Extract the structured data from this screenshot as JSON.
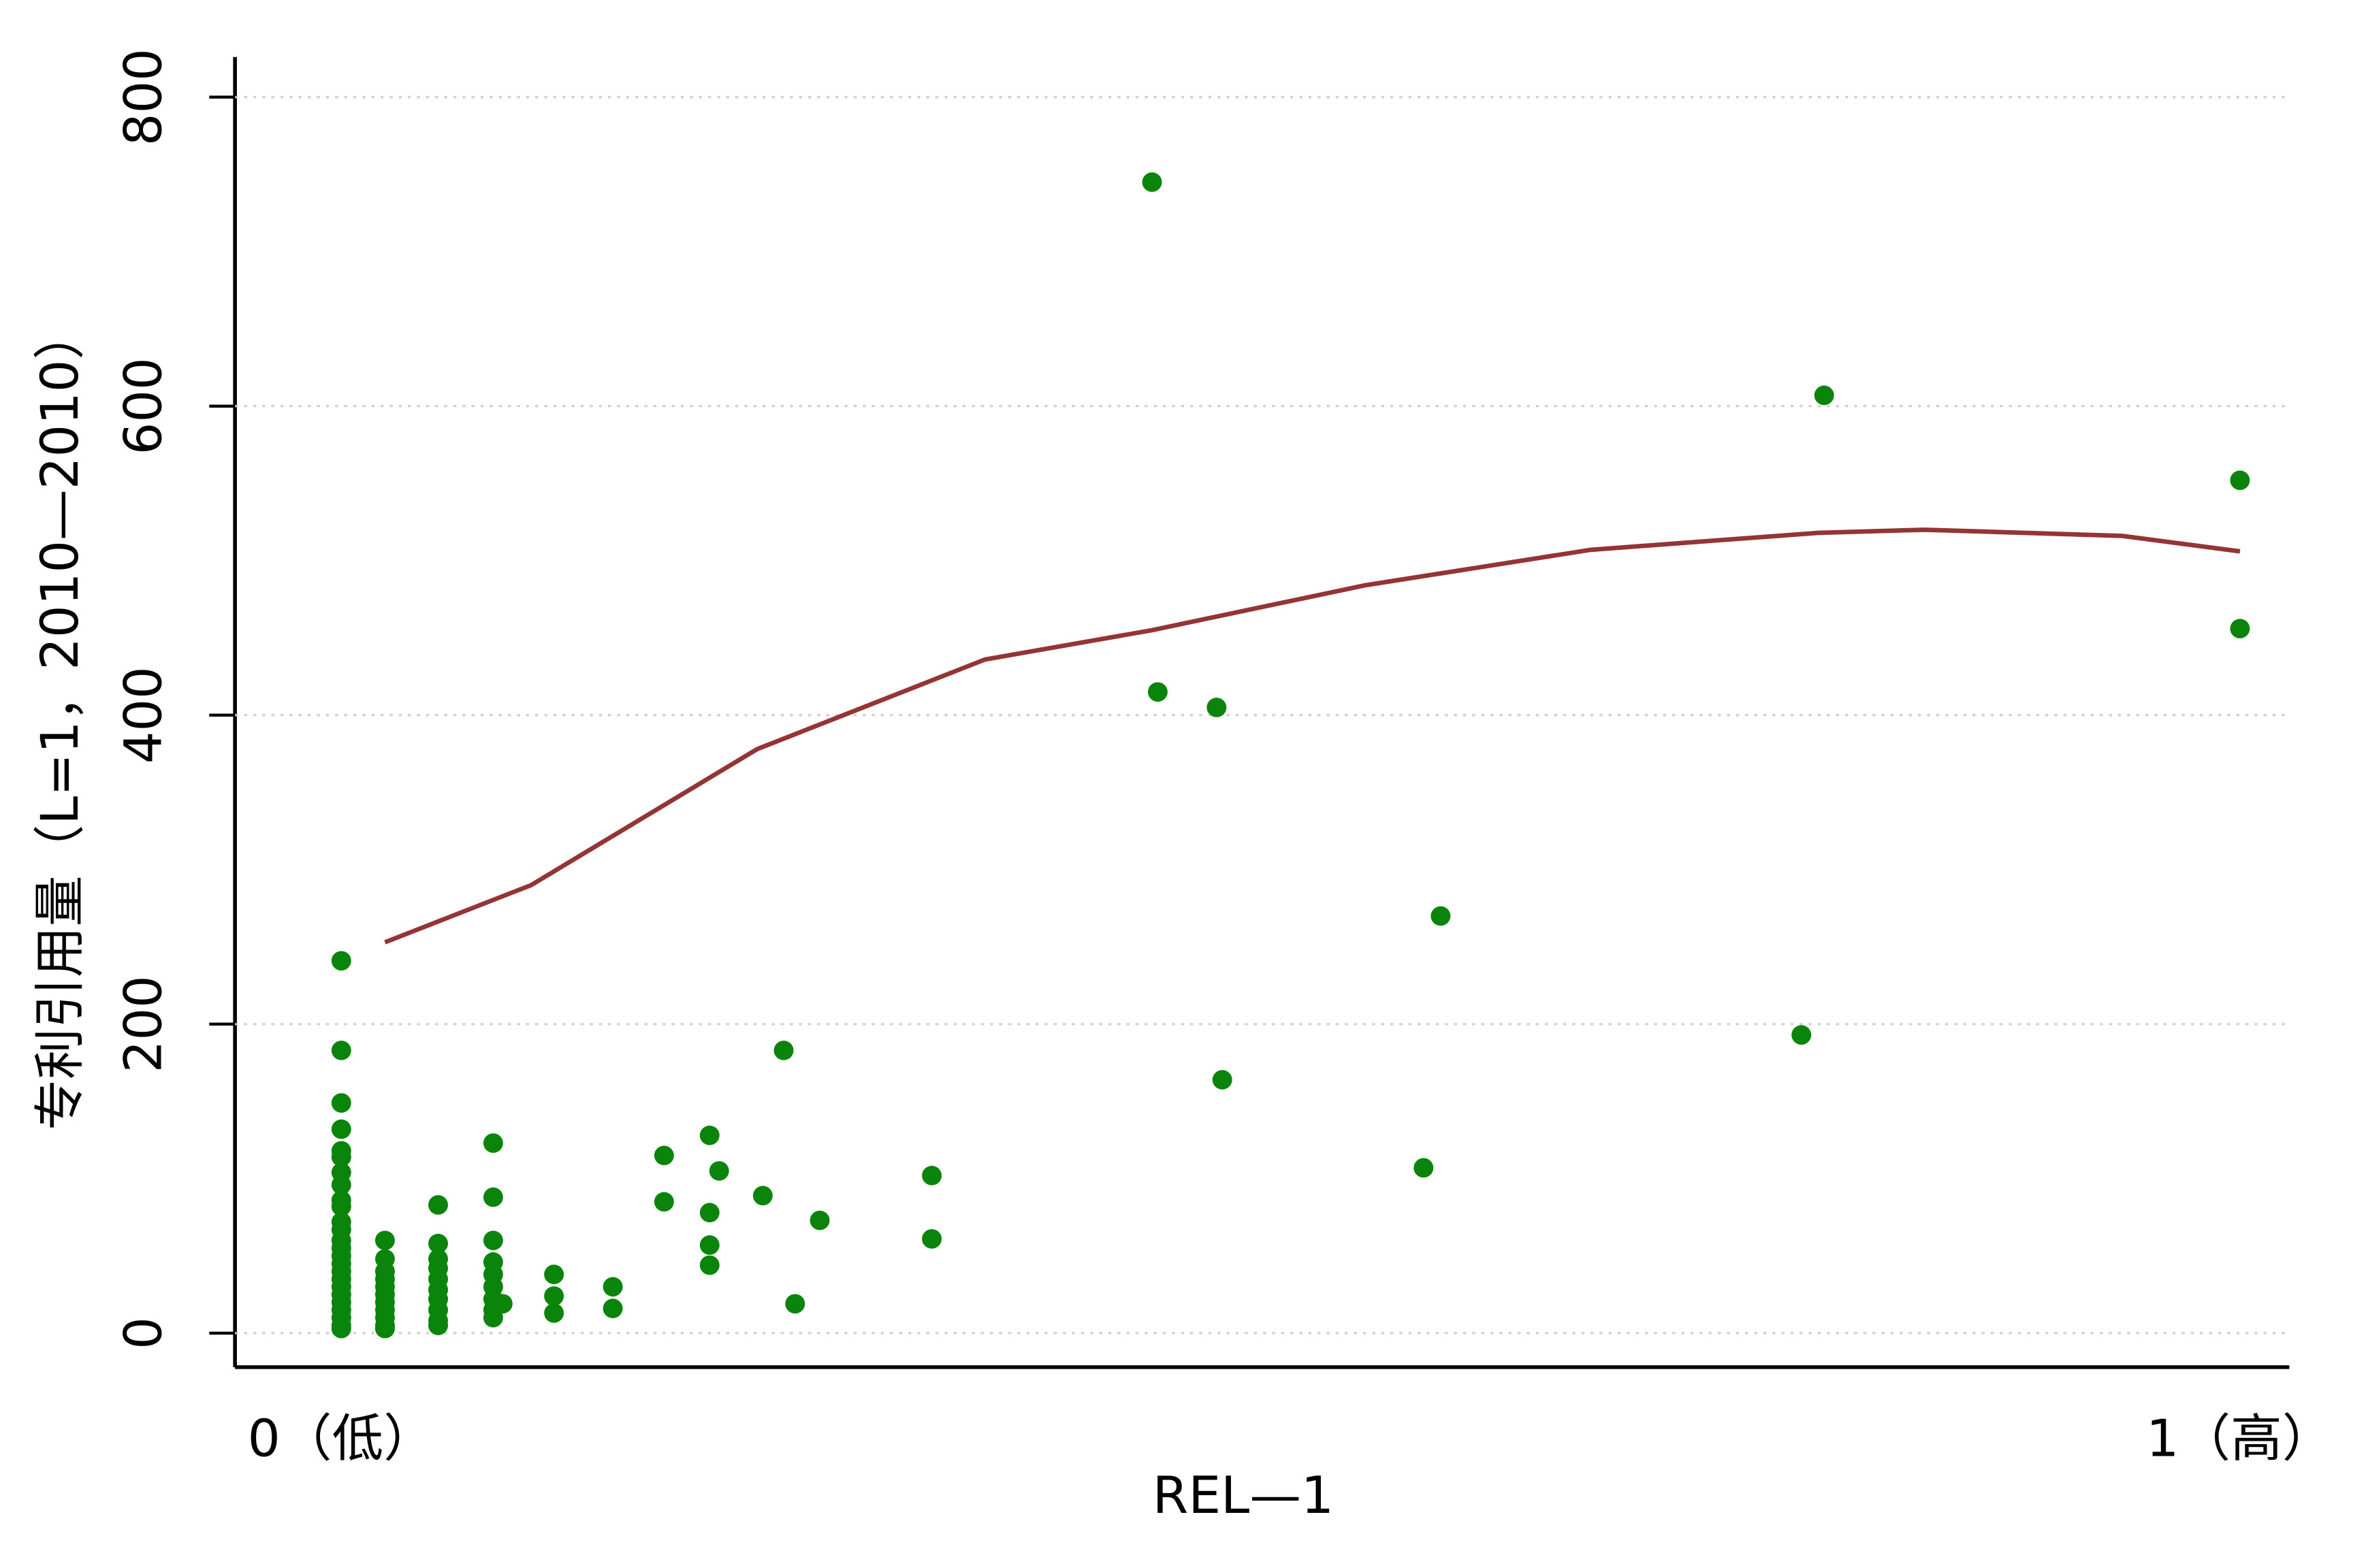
{
  "chart_data": {
    "type": "scatter",
    "x_label": "REL—1",
    "y_label": "专利引用量（L=1，2010—2010）",
    "xlim": [
      -0.056,
      1.026
    ],
    "ylim": [
      -22,
      826
    ],
    "xticks": [
      {
        "value": 0,
        "label": "0（低）"
      },
      {
        "value": 1,
        "label": "1（高）"
      }
    ],
    "yticks": [
      0,
      200,
      400,
      600,
      800
    ],
    "grid": true,
    "points": {
      "color": "#0a840a",
      "x": [
        0,
        0,
        0,
        0,
        0,
        0,
        0,
        0,
        0,
        0,
        0,
        0,
        0,
        0,
        0,
        0,
        0,
        0,
        0,
        0,
        0,
        0,
        0,
        0,
        0,
        0.023,
        0.023,
        0.023,
        0.023,
        0.023,
        0.023,
        0.023,
        0.023,
        0.023,
        0.023,
        0.023,
        0.051,
        0.051,
        0.051,
        0.051,
        0.051,
        0.051,
        0.051,
        0.051,
        0.051,
        0.051,
        0.08,
        0.08,
        0.08,
        0.08,
        0.08,
        0.08,
        0.08,
        0.08,
        0.08,
        0.085,
        0.112,
        0.112,
        0.112,
        0.143,
        0.143,
        0.17,
        0.17,
        0.194,
        0.194,
        0.194,
        0.194,
        0.199,
        0.222,
        0.233,
        0.239,
        0.252,
        0.311,
        0.311,
        0.427,
        0.43,
        0.461,
        0.464,
        0.57,
        0.579,
        0.769,
        0.781,
        1.0,
        1.0
      ],
      "y": [
        241,
        183,
        149,
        132,
        118,
        114,
        104,
        96,
        86,
        82,
        72,
        67,
        60,
        55,
        50,
        45,
        40,
        35,
        30,
        25,
        20,
        15,
        10,
        5,
        3,
        60,
        48,
        40,
        35,
        30,
        25,
        20,
        15,
        10,
        5,
        3,
        83,
        58,
        48,
        42,
        35,
        28,
        22,
        15,
        8,
        5,
        123,
        88,
        60,
        46,
        38,
        30,
        22,
        15,
        10,
        19,
        38,
        24,
        13,
        30,
        16,
        115,
        85,
        128,
        78,
        57,
        44,
        105,
        89,
        183,
        19,
        73,
        102,
        61,
        745,
        415,
        405,
        164,
        107,
        270,
        193,
        607,
        552,
        456
      ]
    },
    "fit": {
      "color": "#943434",
      "x": [
        0.023,
        0.1,
        0.219,
        0.339,
        0.427,
        0.539,
        0.658,
        0.778,
        0.834,
        0.938,
        1.0
      ],
      "y": [
        253,
        290,
        378,
        436,
        455,
        484,
        507,
        518,
        520,
        516,
        506
      ]
    }
  }
}
